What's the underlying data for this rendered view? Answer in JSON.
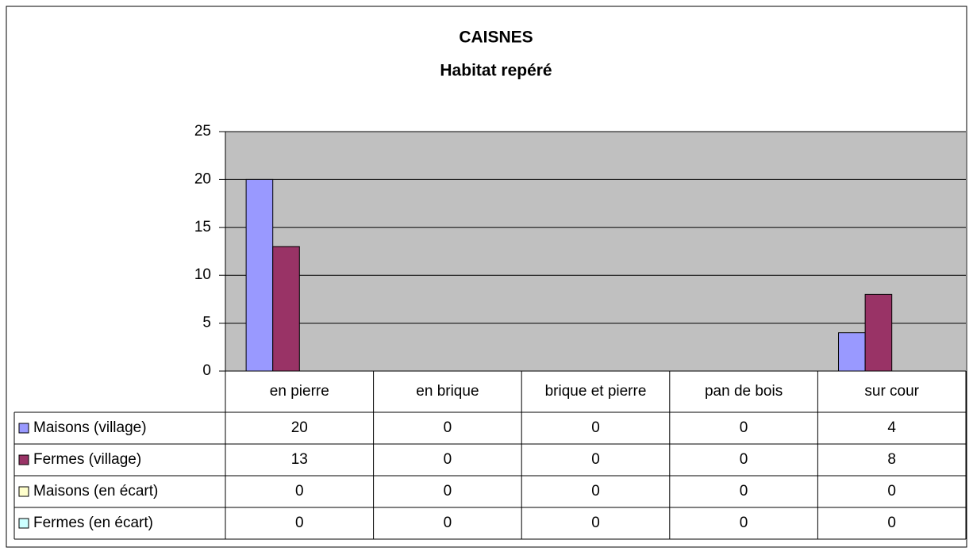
{
  "chart_data": {
    "type": "bar",
    "title": "CAISNES",
    "subtitle": "Habitat repéré",
    "categories": [
      "en pierre",
      "en brique",
      "brique et pierre",
      "pan de bois",
      "sur cour"
    ],
    "series": [
      {
        "name": "Maisons (village)",
        "color": "#9999ff",
        "values": [
          20,
          0,
          0,
          0,
          4
        ]
      },
      {
        "name": "Fermes (village)",
        "color": "#993366",
        "values": [
          13,
          0,
          0,
          0,
          8
        ]
      },
      {
        "name": "Maisons (en écart)",
        "color": "#ffffcc",
        "values": [
          0,
          0,
          0,
          0,
          0
        ]
      },
      {
        "name": "Fermes (en écart)",
        "color": "#ccffff",
        "values": [
          0,
          0,
          0,
          0,
          0
        ]
      }
    ],
    "ylim": [
      0,
      25
    ],
    "yticks": [
      0,
      5,
      10,
      15,
      20,
      25
    ],
    "grid": true,
    "plot_background": "#c0c0c0"
  }
}
